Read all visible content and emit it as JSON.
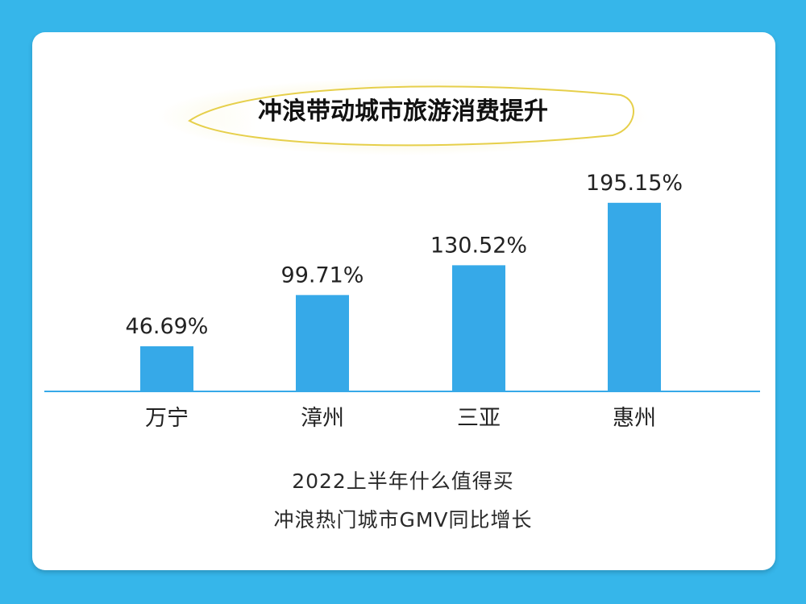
{
  "chart_data": {
    "type": "bar",
    "title": "冲浪带动城市旅游消费提升",
    "categories": [
      "万宁",
      "漳州",
      "三亚",
      "惠州"
    ],
    "values": [
      46.69,
      99.71,
      130.52,
      195.15
    ],
    "value_labels": [
      "46.69%",
      "99.71%",
      "130.52%",
      "195.15%"
    ],
    "unit": "%",
    "ylim": [
      0,
      200
    ],
    "grid": false,
    "bar_color": "#36a9e8"
  },
  "caption": {
    "line1": "2022上半年什么值得买",
    "line2": "冲浪热门城市GMV同比增长"
  },
  "colors": {
    "background": "#36b6ea",
    "card": "#ffffff",
    "baseline": "#36a9e8",
    "title_glow": "#f3e27a"
  }
}
